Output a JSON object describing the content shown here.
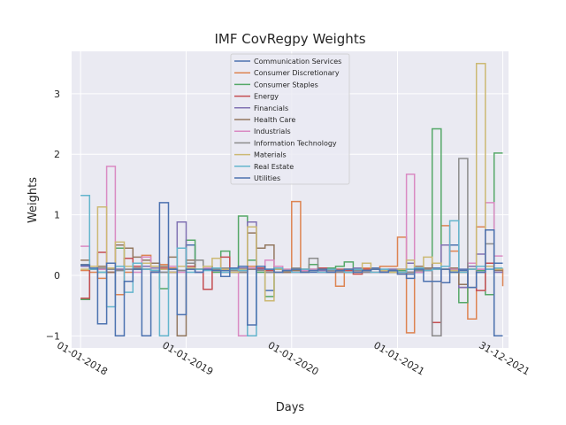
{
  "chart_data": {
    "type": "line",
    "step": true,
    "title": "IMF CovRegpy Weights",
    "xlabel": "Days",
    "ylabel": "Weights",
    "x_ticks": [
      "01-01-2018",
      "01-01-2019",
      "01-01-2020",
      "01-01-2021",
      "31-12-2021"
    ],
    "xlim": [
      "2017-12-01",
      "2022-01-20"
    ],
    "ylim": [
      -1.2,
      3.7
    ],
    "y_ticks": [
      -1,
      0,
      1,
      2,
      3
    ],
    "grid": true,
    "legend_position": "top-center",
    "x_dates": [
      "2018-01-01",
      "2018-02-01",
      "2018-03-01",
      "2018-04-01",
      "2018-05-01",
      "2018-06-01",
      "2018-07-01",
      "2018-08-01",
      "2018-09-01",
      "2018-10-01",
      "2018-11-01",
      "2018-12-01",
      "2019-01-01",
      "2019-02-01",
      "2019-03-01",
      "2019-04-01",
      "2019-05-01",
      "2019-06-01",
      "2019-07-01",
      "2019-08-01",
      "2019-09-01",
      "2019-10-01",
      "2019-11-01",
      "2019-12-01",
      "2020-01-01",
      "2020-02-01",
      "2020-03-01",
      "2020-04-01",
      "2020-05-01",
      "2020-06-01",
      "2020-07-01",
      "2020-08-01",
      "2020-09-01",
      "2020-10-01",
      "2020-11-01",
      "2020-12-01",
      "2021-01-01",
      "2021-02-01",
      "2021-03-01",
      "2021-04-01",
      "2021-05-01",
      "2021-06-01",
      "2021-07-01",
      "2021-08-01",
      "2021-09-01",
      "2021-10-01",
      "2021-11-01",
      "2021-12-01",
      "2021-12-31"
    ],
    "series": [
      {
        "name": "Communication Services",
        "color": "#4c72b0",
        "values": [
          0.17,
          0.15,
          0.12,
          0.1,
          0.08,
          0.1,
          0.12,
          0.1,
          0.08,
          0.05,
          0.05,
          0.08,
          0.5,
          0.1,
          0.12,
          0.1,
          0.08,
          0.05,
          0.05,
          0.1,
          0.15,
          -0.25,
          0.05,
          0.08,
          0.1,
          0.08,
          0.05,
          0.1,
          0.08,
          0.07,
          0.05,
          0.08,
          0.1,
          0.12,
          0.1,
          0.05,
          0.1,
          0.02,
          0.05,
          0.1,
          0.12,
          -0.12,
          0.5,
          0.08,
          0.1,
          0.05,
          0.1,
          0.2,
          0.2
        ]
      },
      {
        "name": "Consumer Discretionary",
        "color": "#dd8452",
        "values": [
          0.08,
          0.05,
          -0.05,
          0.05,
          -0.32,
          0.05,
          0.1,
          0.33,
          0.2,
          0.18,
          0.12,
          0.15,
          0.15,
          0.1,
          0.12,
          0.08,
          0.1,
          0.12,
          0.15,
          0.15,
          0.1,
          0.05,
          0.05,
          0.1,
          1.22,
          0.1,
          0.08,
          0.05,
          0.1,
          -0.18,
          0.1,
          0.05,
          0.12,
          0.1,
          0.15,
          0.15,
          0.63,
          -0.95,
          0.08,
          0.1,
          0.1,
          0.82,
          0.4,
          0.05,
          -0.72,
          0.8,
          0.2,
          0.1,
          -0.18
        ]
      },
      {
        "name": "Consumer Staples",
        "color": "#55a868",
        "values": [
          -0.4,
          0.1,
          0.05,
          0.2,
          0.45,
          0.15,
          0.2,
          0.1,
          0.08,
          -0.22,
          0.1,
          0.15,
          0.58,
          0.1,
          0.15,
          0.05,
          0.4,
          0.05,
          0.98,
          0.25,
          0.05,
          -0.35,
          0.1,
          0.05,
          0.1,
          0.1,
          0.18,
          0.12,
          0.12,
          0.15,
          0.22,
          0.12,
          0.08,
          0.1,
          0.05,
          0.05,
          0.08,
          0.05,
          0.05,
          0.1,
          2.42,
          0.1,
          0.05,
          -0.45,
          0.1,
          0.08,
          -0.32,
          2.02,
          2.02
        ]
      },
      {
        "name": "Energy",
        "color": "#c44e52",
        "values": [
          -0.38,
          0.1,
          0.38,
          0.05,
          0.1,
          0.28,
          0.15,
          0.1,
          0.05,
          0.12,
          0.05,
          0.45,
          0.15,
          0.1,
          -0.23,
          0.12,
          0.3,
          0.1,
          0.15,
          0.1,
          0.12,
          0.08,
          0.1,
          0.05,
          0.05,
          0.08,
          0.1,
          0.12,
          0.05,
          0.1,
          0.08,
          0.02,
          0.1,
          0.05,
          0.08,
          0.1,
          0.02,
          0.05,
          0.1,
          0.08,
          -0.78,
          0.15,
          0.1,
          -0.2,
          0.1,
          -0.25,
          0.2,
          0.1,
          0.1
        ]
      },
      {
        "name": "Financials",
        "color": "#8172b3",
        "values": [
          0.15,
          0.12,
          0.1,
          0.12,
          0.1,
          0.15,
          0.2,
          0.15,
          0.12,
          0.1,
          0.05,
          0.88,
          0.1,
          0.05,
          0.1,
          0.08,
          0.05,
          0.1,
          0.12,
          0.88,
          0.1,
          0.05,
          0.1,
          0.08,
          0.1,
          0.05,
          0.1,
          0.08,
          0.05,
          0.08,
          0.1,
          0.12,
          0.05,
          0.1,
          0.08,
          0.1,
          0.05,
          0.2,
          0.1,
          0.08,
          -1.0,
          0.5,
          0.1,
          -0.2,
          0.15,
          0.35,
          0.1,
          0.05,
          0.05
        ]
      },
      {
        "name": "Health Care",
        "color": "#937860",
        "values": [
          0.25,
          0.12,
          0.15,
          0.05,
          0.5,
          0.45,
          0.3,
          0.25,
          0.2,
          0.15,
          0.3,
          -1.0,
          0.25,
          0.1,
          0.15,
          0.08,
          0.1,
          0.12,
          0.05,
          0.7,
          0.45,
          0.5,
          0.1,
          0.05,
          0.08,
          0.1,
          0.08,
          0.05,
          0.1,
          0.08,
          0.05,
          0.1,
          0.08,
          0.1,
          0.05,
          0.08,
          0.05,
          0.1,
          0.15,
          0.12,
          0.2,
          0.1,
          0.12,
          -0.15,
          0.2,
          0.1,
          0.15,
          0.08,
          0.08
        ]
      },
      {
        "name": "Industrials",
        "color": "#da8bc3",
        "values": [
          0.48,
          0.15,
          0.1,
          1.8,
          0.15,
          0.1,
          0.05,
          0.3,
          0.05,
          0.1,
          0.15,
          0.05,
          0.1,
          0.05,
          0.12,
          0.08,
          0.1,
          0.05,
          -1.0,
          0.12,
          0.15,
          0.25,
          0.15,
          0.1,
          0.05,
          0.08,
          0.1,
          0.05,
          0.08,
          0.05,
          0.1,
          0.08,
          0.05,
          0.1,
          0.05,
          0.08,
          0.1,
          1.67,
          0.05,
          0.1,
          -1.0,
          0.15,
          0.1,
          0.1,
          0.2,
          0.1,
          1.2,
          0.32,
          0.32
        ]
      },
      {
        "name": "Information Technology",
        "color": "#8c8c8c",
        "values": [
          0.18,
          0.15,
          0.12,
          0.1,
          0.08,
          0.1,
          0.12,
          0.1,
          0.08,
          0.05,
          0.1,
          0.08,
          0.2,
          0.25,
          0.15,
          0.1,
          0.12,
          0.08,
          0.05,
          0.1,
          0.08,
          0.05,
          0.1,
          0.08,
          0.12,
          0.05,
          0.28,
          0.1,
          0.08,
          0.05,
          0.1,
          0.08,
          0.05,
          0.1,
          0.08,
          0.05,
          0.1,
          0.05,
          0.08,
          0.1,
          -1.0,
          0.1,
          0.08,
          1.93,
          -0.2,
          0.15,
          0.52,
          -1.0,
          -1.0
        ]
      },
      {
        "name": "Materials",
        "color": "#ccb974",
        "values": [
          0.1,
          0.15,
          1.13,
          0.12,
          0.55,
          0.15,
          0.1,
          0.2,
          0.15,
          0.1,
          0.05,
          0.15,
          0.12,
          0.1,
          0.15,
          0.28,
          0.1,
          0.05,
          0.1,
          0.8,
          0.15,
          -0.42,
          0.1,
          0.08,
          0.1,
          0.05,
          0.08,
          0.1,
          0.05,
          0.08,
          0.1,
          0.05,
          0.2,
          0.1,
          0.08,
          0.05,
          0.1,
          0.25,
          0.1,
          0.3,
          0.2,
          0.1,
          0.08,
          0.05,
          0.1,
          3.5,
          0.15,
          0.1,
          0.1
        ]
      },
      {
        "name": "Real Estate",
        "color": "#64b5cd",
        "values": [
          1.32,
          0.1,
          0.05,
          -0.52,
          0.15,
          -0.28,
          0.2,
          0.1,
          0.08,
          -1.0,
          0.1,
          0.45,
          0.05,
          0.1,
          0.08,
          0.12,
          0.05,
          0.1,
          0.08,
          -1.0,
          0.15,
          0.1,
          0.12,
          0.08,
          0.05,
          0.1,
          0.08,
          0.05,
          0.1,
          0.08,
          0.05,
          0.1,
          0.08,
          0.05,
          0.1,
          0.08,
          0.05,
          0.1,
          0.12,
          0.08,
          0.1,
          0.15,
          0.9,
          0.05,
          0.1,
          0.15,
          0.1,
          0.12,
          0.12
        ]
      },
      {
        "name": "Utilities",
        "color": "#4c72b0",
        "values": [
          0.17,
          0.12,
          -0.8,
          0.2,
          -1.0,
          -0.1,
          0.1,
          -1.0,
          0.05,
          1.2,
          0.1,
          -0.65,
          0.1,
          0.05,
          0.1,
          0.08,
          -0.02,
          0.12,
          0.15,
          -0.82,
          0.15,
          0.1,
          0.05,
          0.08,
          0.1,
          0.05,
          0.08,
          0.1,
          0.05,
          0.08,
          0.1,
          0.05,
          0.08,
          0.1,
          0.05,
          0.08,
          0.02,
          -0.05,
          0.1,
          -0.1,
          -0.1,
          0.1,
          0.05,
          0.1,
          -0.2,
          0.05,
          0.75,
          -1.0,
          -1.0
        ]
      }
    ]
  }
}
